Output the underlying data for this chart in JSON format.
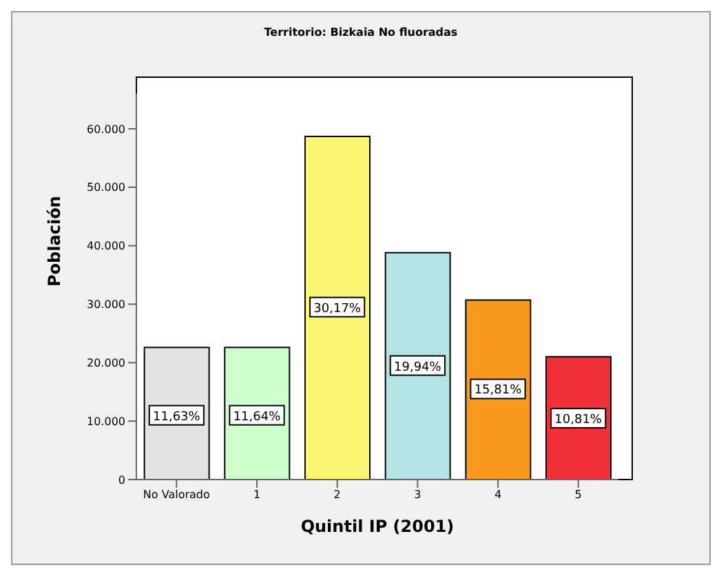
{
  "chart_data": {
    "type": "bar",
    "title": "Territorio: Bizkaia No fluoradas",
    "xlabel": "Quintil IP (2001)",
    "ylabel": "Población",
    "categories": [
      "No Valorado",
      "1",
      "2",
      "3",
      "4",
      "5"
    ],
    "values": [
      22600,
      22600,
      58700,
      38800,
      30700,
      21000
    ],
    "colors": [
      "#e4e4e4",
      "#ccffcc",
      "#faf572",
      "#b4e4e6",
      "#f89a1f",
      "#f03038"
    ],
    "annotations": [
      {
        "text": "11,63%",
        "x": "No Valorado",
        "y": 11000
      },
      {
        "text": "11,64%",
        "x": "1",
        "y": 11000
      },
      {
        "text": "30,17%",
        "x": "2",
        "y": 29500
      },
      {
        "text": "19,94%",
        "x": "3",
        "y": 19500
      },
      {
        "text": "15,81%",
        "x": "4",
        "y": 15500
      },
      {
        "text": "10,81%",
        "x": "5",
        "y": 10500
      }
    ],
    "ylim": [
      0,
      66000
    ],
    "yticks": [
      {
        "value": 0,
        "label": "0"
      },
      {
        "value": 10000,
        "label": "10.000"
      },
      {
        "value": 20000,
        "label": "20.000"
      },
      {
        "value": 30000,
        "label": "30.000"
      },
      {
        "value": 40000,
        "label": "40.000"
      },
      {
        "value": 50000,
        "label": "50.000"
      },
      {
        "value": 60000,
        "label": "60.000"
      }
    ],
    "legend": false
  }
}
